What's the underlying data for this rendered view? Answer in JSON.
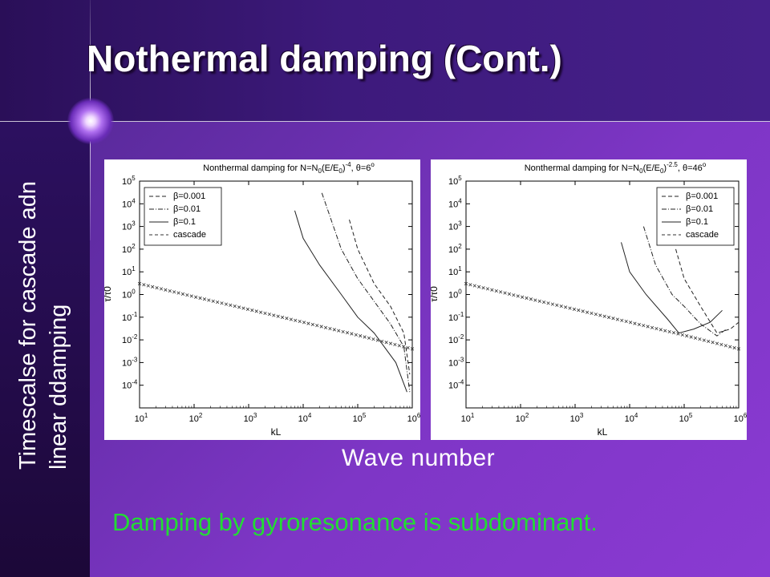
{
  "slide": {
    "title": "Nothermal damping (Cont.)",
    "ylabel_line1": "Timescalse for cascade adn",
    "ylabel_line2": "linear ddamping",
    "xlabel": "Wave number",
    "caption": "Damping by gyroresonance is subdominant."
  },
  "colors": {
    "background": "#3a1468",
    "caption_text": "#22dd33",
    "title_text": "#ffffff"
  },
  "chart_data": [
    {
      "type": "line",
      "title": "Nonthermal damping for N=N0(E/E0)^-4, θ=6°",
      "title_parts": {
        "main": "Nonthermal damping for N=N",
        "sub0": "0",
        "mid": "(E/E",
        "sub1": "0",
        "close": ")",
        "exp": "-4",
        "tail": ", ",
        "theta": "θ=6",
        "deg": "o"
      },
      "xlabel": "kL",
      "ylabel": "τ/τ0",
      "xscale": "log",
      "yscale": "log",
      "xlim": [
        10,
        1000000
      ],
      "ylim": [
        1e-05,
        100000
      ],
      "x_ticks": [
        "10^1",
        "10^2",
        "10^3",
        "10^4",
        "10^5",
        "10^6"
      ],
      "y_ticks": [
        "10^-4",
        "10^-3",
        "10^-2",
        "10^-1",
        "10^0",
        "10^1",
        "10^2",
        "10^3",
        "10^4",
        "10^5"
      ],
      "legend_position": "top-left",
      "series": [
        {
          "name": "β=0.001",
          "style": "dashed",
          "x": [
            70000,
            100000,
            200000,
            400000,
            700000,
            900000
          ],
          "y": [
            2000,
            100,
            3,
            0.3,
            0.02,
            0.0003
          ]
        },
        {
          "name": "β=0.01",
          "style": "dashdot",
          "x": [
            22000,
            50000,
            100000,
            200000,
            400000,
            700000,
            900000
          ],
          "y": [
            30000,
            100,
            5,
            0.5,
            0.05,
            0.005,
            5e-05
          ]
        },
        {
          "name": "β=0.1",
          "style": "solid",
          "x": [
            7000,
            10000,
            20000,
            50000,
            100000,
            200000,
            500000,
            800000
          ],
          "y": [
            5000,
            300,
            20,
            1,
            0.1,
            0.02,
            0.001,
            5e-05
          ]
        },
        {
          "name": "cascade",
          "style": "cross",
          "x": [
            10,
            100,
            1000,
            10000,
            100000,
            1000000
          ],
          "y": [
            3,
            0.8,
            0.22,
            0.06,
            0.016,
            0.004
          ]
        }
      ]
    },
    {
      "type": "line",
      "title": "Nonthermal damping for N=N0(E/E0)^-2.5, θ=46°",
      "title_parts": {
        "main": "Nonthermal damping for N=N",
        "sub0": "0",
        "mid": "(E/E",
        "sub1": "0",
        "close": ")",
        "exp": "-2.5",
        "tail": ", ",
        "theta": "θ=46",
        "deg": "o"
      },
      "xlabel": "kL",
      "ylabel": "τ/τ0",
      "xscale": "log",
      "yscale": "log",
      "xlim": [
        10,
        1000000
      ],
      "ylim": [
        1e-05,
        100000
      ],
      "x_ticks": [
        "10^1",
        "10^2",
        "10^3",
        "10^4",
        "10^5",
        "10^6"
      ],
      "y_ticks": [
        "10^-4",
        "10^-3",
        "10^-2",
        "10^-1",
        "10^0",
        "10^1",
        "10^2",
        "10^3",
        "10^4",
        "10^5"
      ],
      "legend_position": "top-right",
      "series": [
        {
          "name": "β=0.001",
          "style": "dashed",
          "x": [
            70000,
            100000,
            200000,
            400000,
            700000,
            1000000
          ],
          "y": [
            100,
            5,
            0.3,
            0.02,
            0.03,
            0.06
          ]
        },
        {
          "name": "β=0.01",
          "style": "dashdot",
          "x": [
            18000,
            30000,
            60000,
            100000,
            200000,
            400000,
            600000
          ],
          "y": [
            1000,
            20,
            1,
            0.3,
            0.05,
            0.015,
            0.03
          ]
        },
        {
          "name": "β=0.1",
          "style": "solid",
          "x": [
            7000,
            10000,
            20000,
            50000,
            80000,
            150000,
            300000,
            500000
          ],
          "y": [
            200,
            10,
            1,
            0.08,
            0.02,
            0.03,
            0.06,
            0.2
          ]
        },
        {
          "name": "cascade",
          "style": "cross",
          "x": [
            10,
            100,
            1000,
            10000,
            100000,
            1000000
          ],
          "y": [
            3,
            0.8,
            0.22,
            0.06,
            0.016,
            0.004
          ]
        }
      ]
    }
  ]
}
